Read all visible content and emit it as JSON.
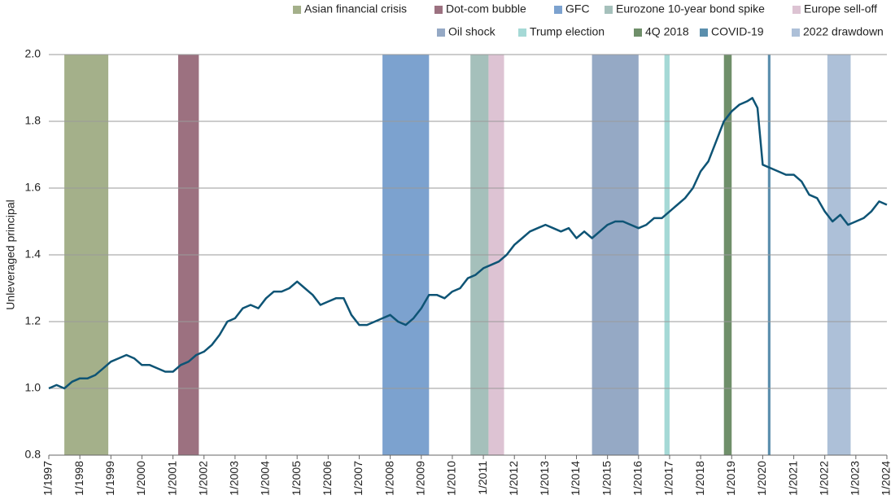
{
  "chart_data": {
    "type": "line",
    "ylabel": "Unleveraged principal",
    "xlim": [
      "1997-01",
      "2024-01"
    ],
    "xticks": [
      {
        "value": "1997-01",
        "label": "1/1997"
      },
      {
        "value": "1998-01",
        "label": "1/1998"
      },
      {
        "value": "1999-01",
        "label": "1/1999"
      },
      {
        "value": "2000-01",
        "label": "1/2000"
      },
      {
        "value": "2001-01",
        "label": "1/2001"
      },
      {
        "value": "2002-01",
        "label": "1/2002"
      },
      {
        "value": "2003-01",
        "label": "1/2003"
      },
      {
        "value": "2004-01",
        "label": "1/2004"
      },
      {
        "value": "2005-01",
        "label": "1/2005"
      },
      {
        "value": "2006-01",
        "label": "1/2006"
      },
      {
        "value": "2007-01",
        "label": "1/2007"
      },
      {
        "value": "2008-01",
        "label": "1/2008"
      },
      {
        "value": "2009-01",
        "label": "1/2009"
      },
      {
        "value": "2010-01",
        "label": "1/2010"
      },
      {
        "value": "2011-01",
        "label": "1/2011"
      },
      {
        "value": "2012-01",
        "label": "1/2012"
      },
      {
        "value": "2013-01",
        "label": "1/2013"
      },
      {
        "value": "2014-01",
        "label": "1/2014"
      },
      {
        "value": "2015-01",
        "label": "1/2015"
      },
      {
        "value": "2016-01",
        "label": "1/2016"
      },
      {
        "value": "2017-01",
        "label": "1/2017"
      },
      {
        "value": "2018-01",
        "label": "1/2018"
      },
      {
        "value": "2019-01",
        "label": "1/2019"
      },
      {
        "value": "2020-01",
        "label": "1/2020"
      },
      {
        "value": "2021-01",
        "label": "1/2021"
      },
      {
        "value": "2022-01",
        "label": "1/2022"
      },
      {
        "value": "2023-01",
        "label": "1/2023"
      },
      {
        "value": "2024-01",
        "label": "1/2024"
      }
    ],
    "ylim": [
      0.8,
      2.0
    ],
    "yticks": [
      {
        "value": 0.8,
        "label": "0.8"
      },
      {
        "value": 1,
        "label": "1.0"
      },
      {
        "value": 1.2,
        "label": "1.2"
      },
      {
        "value": 1.4,
        "label": "1.4"
      },
      {
        "value": 1.6,
        "label": "1.6"
      },
      {
        "value": 1.8,
        "label": "1.8"
      },
      {
        "value": 2,
        "label": "2.0"
      }
    ],
    "grid": true,
    "bands": [
      {
        "name": "Asian financial crisis",
        "color": "#a4b08a",
        "start": "1997-07",
        "end": "1998-12"
      },
      {
        "name": "Dot-com bubble",
        "color": "#9c7180",
        "start": "2001-03",
        "end": "2001-11"
      },
      {
        "name": "GFC",
        "color": "#7ca2cf",
        "start": "2007-10",
        "end": "2009-04"
      },
      {
        "name": "Eurozone 10-year bond spike",
        "color": "#a5c0bb",
        "start": "2010-08",
        "end": "2011-03"
      },
      {
        "name": "Europe sell-off",
        "color": "#ddc3d3",
        "start": "2011-03",
        "end": "2011-09"
      },
      {
        "name": "Oil shock",
        "color": "#95a9c5",
        "start": "2014-07",
        "end": "2016-01"
      },
      {
        "name": "Trump election",
        "color": "#a5d9d6",
        "start": "2016-11",
        "end": "2017-01"
      },
      {
        "name": "4Q 2018",
        "color": "#6f8f6a",
        "start": "2018-10",
        "end": "2019-01"
      },
      {
        "name": "COVID-19",
        "color": "#5b8fad",
        "start": "2020-03",
        "end": "2020-04"
      },
      {
        "name": "2022 drawdown",
        "color": "#adc0d8",
        "start": "2022-02",
        "end": "2022-11"
      }
    ],
    "x": [
      "1997-01",
      "1997-04",
      "1997-07",
      "1997-10",
      "1998-01",
      "1998-04",
      "1998-07",
      "1998-10",
      "1999-01",
      "1999-04",
      "1999-07",
      "1999-10",
      "2000-01",
      "2000-04",
      "2000-07",
      "2000-10",
      "2001-01",
      "2001-04",
      "2001-07",
      "2001-10",
      "2002-01",
      "2002-04",
      "2002-07",
      "2002-10",
      "2003-01",
      "2003-04",
      "2003-07",
      "2003-10",
      "2004-01",
      "2004-04",
      "2004-07",
      "2004-10",
      "2005-01",
      "2005-04",
      "2005-07",
      "2005-10",
      "2006-01",
      "2006-04",
      "2006-07",
      "2006-10",
      "2007-01",
      "2007-04",
      "2007-07",
      "2007-10",
      "2008-01",
      "2008-04",
      "2008-07",
      "2008-10",
      "2009-01",
      "2009-04",
      "2009-07",
      "2009-10",
      "2010-01",
      "2010-04",
      "2010-07",
      "2010-10",
      "2011-01",
      "2011-04",
      "2011-07",
      "2011-10",
      "2012-01",
      "2012-04",
      "2012-07",
      "2012-10",
      "2013-01",
      "2013-04",
      "2013-07",
      "2013-10",
      "2014-01",
      "2014-04",
      "2014-07",
      "2014-10",
      "2015-01",
      "2015-04",
      "2015-07",
      "2015-10",
      "2016-01",
      "2016-04",
      "2016-07",
      "2016-10",
      "2017-01",
      "2017-04",
      "2017-07",
      "2017-10",
      "2018-01",
      "2018-04",
      "2018-07",
      "2018-10",
      "2019-01",
      "2019-04",
      "2019-07",
      "2019-09",
      "2019-11",
      "2020-01",
      "2020-04",
      "2020-07",
      "2020-10",
      "2021-01",
      "2021-04",
      "2021-07",
      "2021-10",
      "2022-01",
      "2022-04",
      "2022-07",
      "2022-10",
      "2023-01",
      "2023-04",
      "2023-07",
      "2023-10",
      "2024-01"
    ],
    "series": [
      {
        "name": "Unleveraged principal",
        "color": "#0e5475",
        "values": [
          1.0,
          1.01,
          1.0,
          1.02,
          1.03,
          1.03,
          1.04,
          1.06,
          1.08,
          1.09,
          1.1,
          1.09,
          1.07,
          1.07,
          1.06,
          1.05,
          1.05,
          1.07,
          1.08,
          1.1,
          1.11,
          1.13,
          1.16,
          1.2,
          1.21,
          1.24,
          1.25,
          1.24,
          1.27,
          1.29,
          1.29,
          1.3,
          1.32,
          1.3,
          1.28,
          1.25,
          1.26,
          1.27,
          1.27,
          1.22,
          1.19,
          1.19,
          1.2,
          1.21,
          1.22,
          1.2,
          1.19,
          1.21,
          1.24,
          1.28,
          1.28,
          1.27,
          1.29,
          1.3,
          1.33,
          1.34,
          1.36,
          1.37,
          1.38,
          1.4,
          1.43,
          1.45,
          1.47,
          1.48,
          1.49,
          1.48,
          1.47,
          1.48,
          1.45,
          1.47,
          1.45,
          1.47,
          1.49,
          1.5,
          1.5,
          1.49,
          1.48,
          1.49,
          1.51,
          1.51,
          1.53,
          1.55,
          1.57,
          1.6,
          1.65,
          1.68,
          1.74,
          1.8,
          1.83,
          1.85,
          1.86,
          1.87,
          1.84,
          1.67,
          1.66,
          1.65,
          1.64,
          1.64,
          1.62,
          1.58,
          1.57,
          1.53,
          1.5,
          1.52,
          1.49,
          1.5,
          1.51,
          1.53,
          1.56,
          1.55
        ]
      }
    ]
  }
}
